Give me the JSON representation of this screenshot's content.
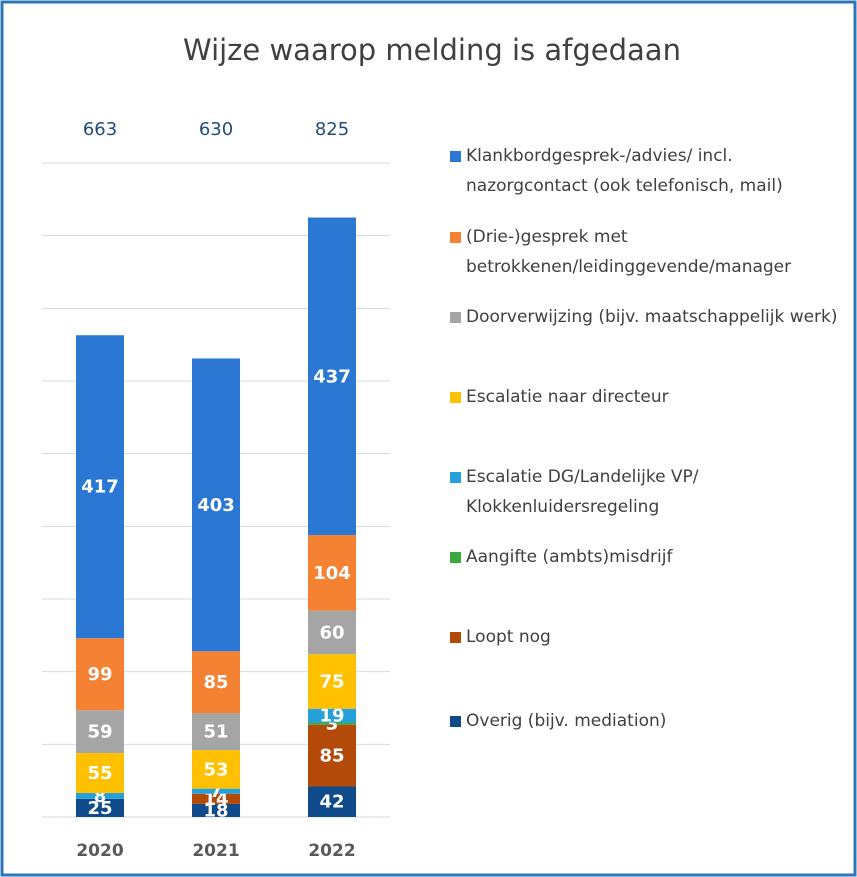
{
  "chart_data": {
    "type": "stacked_bar",
    "title": "Wijze waarop melding is afgedaan",
    "categories": [
      "2020",
      "2021",
      "2022"
    ],
    "totals": [
      663,
      630,
      825
    ],
    "series": [
      {
        "name": "Overig (bijv. mediation)",
        "color": "#0f4a8a",
        "values": [
          25,
          18,
          42
        ]
      },
      {
        "name": "Loopt nog",
        "color": "#b44a0a",
        "values": [
          null,
          14,
          85
        ]
      },
      {
        "name": "Aangifte (ambts)misdrijf",
        "color": "#3aa83a",
        "values": [
          null,
          null,
          3
        ]
      },
      {
        "name": "Escalatie DG/Landelijke VP/ Klokkenluidersregeling",
        "color": "#26a0da",
        "values": [
          8,
          7,
          19
        ]
      },
      {
        "name": "Escalatie naar directeur",
        "color": "#ffc000",
        "values": [
          55,
          53,
          75
        ]
      },
      {
        "name": "Doorverwijzing (bijv. maatschappelijk werk)",
        "color": "#a5a5a5",
        "values": [
          59,
          51,
          60
        ]
      },
      {
        "name": "(Drie-)gesprek met betrokkenen/leidinggevende/manager",
        "color": "#f58233",
        "values": [
          99,
          85,
          104
        ]
      },
      {
        "name": "Klankbordgesprek-/advies/ incl. nazorgcontact (ook telefonisch, mail)",
        "color": "#2b78d4",
        "values": [
          417,
          403,
          437
        ]
      }
    ],
    "ylim": [
      0,
      900
    ],
    "yticks": [
      0,
      100,
      200,
      300,
      400,
      500,
      600,
      700,
      800,
      900
    ],
    "grid": true
  }
}
